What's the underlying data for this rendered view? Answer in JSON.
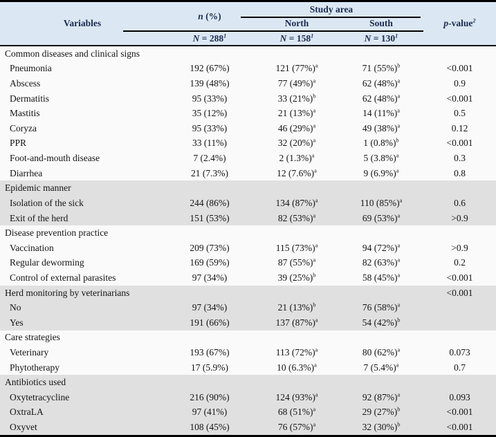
{
  "table": {
    "header": {
      "variables": "Variables",
      "n_italic": "n",
      "n_rest": " (%)",
      "n_sub_letter": "N",
      "n_sub_rest": " = 288",
      "n_sub_sup": "1",
      "study_area": "Study area",
      "north": "North",
      "north_sub_letter": "N",
      "north_sub_rest": " = 158",
      "north_sub_sup": "1",
      "south": "South",
      "south_sub_letter": "N",
      "south_sub_rest": " = 130",
      "south_sub_sup": "1",
      "p_italic": "p",
      "p_rest": "-value",
      "p_sup": "2"
    },
    "colors": {
      "header_bg": "#dbe8f4",
      "header_text": "#1b2a4e",
      "row_bg": "#fafafa",
      "shaded_row_bg": "#e0e0e0",
      "border": "#000000"
    },
    "sections": [
      {
        "title": "Common diseases and clinical signs",
        "shaded": false,
        "p": "",
        "rows": [
          {
            "label": "Pneumonia",
            "n": "192 (67%)",
            "north": "121 (77%)",
            "north_sup": "a",
            "south": "71 (55%)",
            "south_sup": "b",
            "p": "<0.001"
          },
          {
            "label": "Abscess",
            "n": "139 (48%)",
            "north": "77 (49%)",
            "north_sup": "a",
            "south": "62 (48%)",
            "south_sup": "a",
            "p": "0.9"
          },
          {
            "label": "Dermatitis",
            "n": "95 (33%)",
            "north": "33 (21%)",
            "north_sup": "b",
            "south": "62 (48%)",
            "south_sup": "a",
            "p": "<0.001"
          },
          {
            "label": "Mastitis",
            "n": "35 (12%)",
            "north": "21 (13%)",
            "north_sup": "a",
            "south": "14 (11%)",
            "south_sup": "a",
            "p": "0.5"
          },
          {
            "label": "Coryza",
            "n": "95 (33%)",
            "north": "46 (29%)",
            "north_sup": "a",
            "south": "49 (38%)",
            "south_sup": "a",
            "p": "0.12"
          },
          {
            "label": "PPR",
            "n": "33 (11%)",
            "north": "32 (20%)",
            "north_sup": "a",
            "south": "1 (0.8%)",
            "south_sup": "b",
            "p": "<0.001"
          },
          {
            "label": "Foot-and-mouth disease",
            "n": "7 (2.4%)",
            "north": "2 (1.3%)",
            "north_sup": "a",
            "south": "5 (3.8%)",
            "south_sup": "a",
            "p": "0.3"
          },
          {
            "label": "Diarrhea",
            "n": "21 (7.3%)",
            "north": "12 (7.6%)",
            "north_sup": "a",
            "south": "9 (6.9%)",
            "south_sup": "a",
            "p": "0.8"
          }
        ]
      },
      {
        "title": "Epidemic manner",
        "shaded": true,
        "p": "",
        "rows": [
          {
            "label": "Isolation of the sick",
            "n": "244 (86%)",
            "north": "134 (87%)",
            "north_sup": "a",
            "south": "110 (85%)",
            "south_sup": "a",
            "p": "0.6"
          },
          {
            "label": "Exit of the herd",
            "n": "151 (53%)",
            "north": "82 (53%)",
            "north_sup": "a",
            "south": "69 (53%)",
            "south_sup": "a",
            "p": ">0.9"
          }
        ]
      },
      {
        "title": "Disease prevention practice",
        "shaded": false,
        "p": "",
        "rows": [
          {
            "label": "Vaccination",
            "n": "209 (73%)",
            "north": "115 (73%)",
            "north_sup": "a",
            "south": "94 (72%)",
            "south_sup": "a",
            "p": ">0.9"
          },
          {
            "label": "Regular deworming",
            "n": "169 (59%)",
            "north": "87 (55%)",
            "north_sup": "a",
            "south": "82 (63%)",
            "south_sup": "a",
            "p": "0.2"
          },
          {
            "label": "Control of external parasites",
            "n": "97 (34%)",
            "north": "39 (25%)",
            "north_sup": "b",
            "south": "58 (45%)",
            "south_sup": "a",
            "p": "<0.001"
          }
        ]
      },
      {
        "title": "Herd monitoring by veterinarians",
        "shaded": true,
        "p": "<0.001",
        "rows": [
          {
            "label": "No",
            "n": "97 (34%)",
            "north": "21 (13%)",
            "north_sup": "b",
            "south": "76 (58%)",
            "south_sup": "a",
            "p": ""
          },
          {
            "label": "Yes",
            "n": "191 (66%)",
            "north": "137 (87%)",
            "north_sup": "a",
            "south": "54 (42%)",
            "south_sup": "b",
            "p": ""
          }
        ]
      },
      {
        "title": "Care strategies",
        "shaded": false,
        "p": "",
        "rows": [
          {
            "label": "Veterinary",
            "n": "193 (67%)",
            "north": "113 (72%)",
            "north_sup": "a",
            "south": "80 (62%)",
            "south_sup": "a",
            "p": "0.073"
          },
          {
            "label": "Phytotherapy",
            "n": "17 (5.9%)",
            "north": "10 (6.3%)",
            "north_sup": "a",
            "south": "7 (5.4%)",
            "south_sup": "a",
            "p": "0.7"
          }
        ]
      },
      {
        "title": "Antibiotics used",
        "shaded": true,
        "p": "",
        "rows": [
          {
            "label": "Oxytetracycline",
            "n": "216 (90%)",
            "north": "124 (93%)",
            "north_sup": "a",
            "south": "92 (87%)",
            "south_sup": "a",
            "p": "0.093"
          },
          {
            "label": "OxtraLA",
            "n": "97 (41%)",
            "north": "68 (51%)",
            "north_sup": "a",
            "south": "29 (27%)",
            "south_sup": "b",
            "p": "<0.001"
          },
          {
            "label": "Oxyvet",
            "n": "108 (45%)",
            "north": "76 (57%)",
            "north_sup": "a",
            "south": "32 (30%)",
            "south_sup": "b",
            "p": "<0.001"
          }
        ]
      }
    ]
  }
}
